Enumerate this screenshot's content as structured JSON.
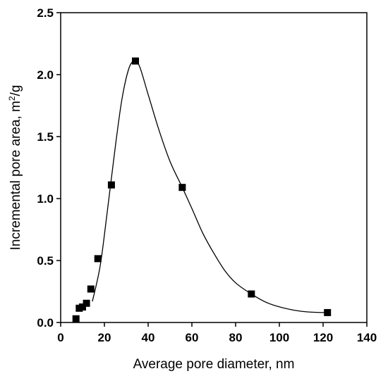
{
  "chart_data": {
    "type": "scatter",
    "title": "",
    "xlabel": "Average pore diameter, nm",
    "ylabel": {
      "prefix": "Incremental pore area, m",
      "superscript": "2",
      "suffix": "/g"
    },
    "xlim": [
      0,
      140
    ],
    "ylim": [
      0,
      2.5
    ],
    "xticks": [
      0,
      20,
      40,
      60,
      80,
      100,
      120,
      140
    ],
    "yticks": [
      0.0,
      0.5,
      1.0,
      1.5,
      2.0,
      2.5
    ],
    "xtick_labels": [
      "0",
      "20",
      "40",
      "60",
      "80",
      "100",
      "120",
      "140"
    ],
    "ytick_labels": [
      "0.0",
      "0.5",
      "1.0",
      "1.5",
      "2.0",
      "2.5"
    ],
    "grid": false,
    "legend": "none",
    "marker": "square",
    "marker_color": "#000000",
    "points": [
      {
        "x": 7.0,
        "y": 0.03
      },
      {
        "x": 8.5,
        "y": 0.115
      },
      {
        "x": 10.0,
        "y": 0.125
      },
      {
        "x": 11.8,
        "y": 0.155
      },
      {
        "x": 13.8,
        "y": 0.27
      },
      {
        "x": 17.0,
        "y": 0.515
      },
      {
        "x": 23.2,
        "y": 1.11
      },
      {
        "x": 34.2,
        "y": 2.11
      },
      {
        "x": 55.6,
        "y": 1.09
      },
      {
        "x": 87.2,
        "y": 0.23
      },
      {
        "x": 122.0,
        "y": 0.08
      }
    ],
    "fit_curve": [
      {
        "x": 14.5,
        "y": 0.17
      },
      {
        "x": 18.0,
        "y": 0.45
      },
      {
        "x": 21.0,
        "y": 0.85
      },
      {
        "x": 25.0,
        "y": 1.42
      },
      {
        "x": 28.0,
        "y": 1.8
      },
      {
        "x": 31.0,
        "y": 2.04
      },
      {
        "x": 33.5,
        "y": 2.11
      },
      {
        "x": 36.0,
        "y": 2.07
      },
      {
        "x": 40.0,
        "y": 1.84
      },
      {
        "x": 45.0,
        "y": 1.55
      },
      {
        "x": 50.0,
        "y": 1.3
      },
      {
        "x": 55.6,
        "y": 1.09
      },
      {
        "x": 60.0,
        "y": 0.92
      },
      {
        "x": 65.0,
        "y": 0.72
      },
      {
        "x": 70.0,
        "y": 0.56
      },
      {
        "x": 75.0,
        "y": 0.42
      },
      {
        "x": 80.0,
        "y": 0.32
      },
      {
        "x": 87.2,
        "y": 0.23
      },
      {
        "x": 95.0,
        "y": 0.155
      },
      {
        "x": 105.0,
        "y": 0.105
      },
      {
        "x": 113.0,
        "y": 0.085
      },
      {
        "x": 122.0,
        "y": 0.08
      }
    ]
  }
}
